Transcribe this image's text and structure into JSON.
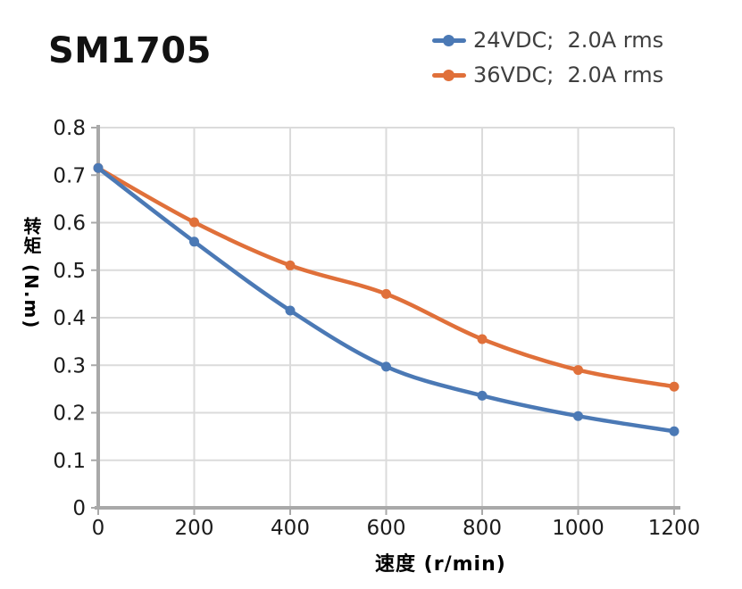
{
  "page": {
    "title": "SM1705"
  },
  "chart_data": {
    "type": "line",
    "title": "SM1705",
    "x": [
      0,
      200,
      400,
      600,
      800,
      1000,
      1200
    ],
    "series": [
      {
        "name": "24VDC;  2.0A rms",
        "color": "#4B79B5",
        "values": [
          0.715,
          0.56,
          0.415,
          0.297,
          0.236,
          0.193,
          0.161
        ]
      },
      {
        "name": "36VDC;  2.0A rms",
        "color": "#E0703A",
        "values": [
          0.715,
          0.601,
          0.51,
          0.45,
          0.355,
          0.29,
          0.255
        ]
      }
    ],
    "xlabel": "速度 (r/min)",
    "ylabel": "转矩 (N.m)",
    "xlim": [
      0,
      1200
    ],
    "ylim": [
      0,
      0.8
    ],
    "xticks": [
      0,
      200,
      400,
      600,
      800,
      1000,
      1200
    ],
    "yticks": [
      0,
      0.1,
      0.2,
      0.3,
      0.4,
      0.5,
      0.6,
      0.7,
      0.8
    ],
    "grid": true,
    "legend_position": "top-right",
    "marker": "circle",
    "colors": {
      "axis": "#A9A9A9",
      "grid": "#DBDBDB",
      "tick_text": "#1b1b1b",
      "legend_text": "#3f3f3f",
      "title_text": "#121212"
    }
  }
}
